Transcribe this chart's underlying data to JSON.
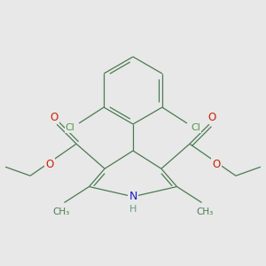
{
  "bg_color": "#e8e8e8",
  "bond_color": "#4a7a50",
  "bond_width": 0.9,
  "atom_colors": {
    "C": "#4a7a50",
    "N": "#1a1acc",
    "O": "#cc2200",
    "Cl": "#4a9a40",
    "H": "#669988"
  },
  "scale": 1.0
}
